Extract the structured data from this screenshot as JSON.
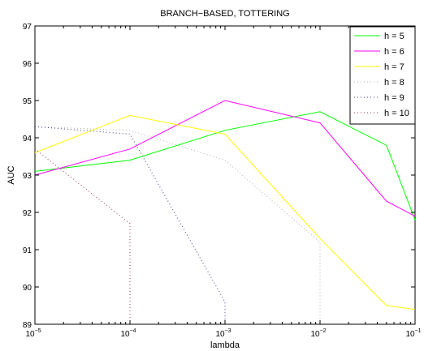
{
  "chart_data": {
    "type": "line",
    "title": "BRANCH−BASED, TOTTERING",
    "xlabel": "lambda",
    "ylabel": "AUC",
    "xscale": "log",
    "xlim": [
      1e-05,
      0.1
    ],
    "ylim": [
      89,
      97
    ],
    "grid": false,
    "legend_position": "top-right",
    "xticks": [
      {
        "base": "10",
        "exp": "−5",
        "value": 1e-05
      },
      {
        "base": "10",
        "exp": "−4",
        "value": 0.0001
      },
      {
        "base": "10",
        "exp": "−3",
        "value": 0.001
      },
      {
        "base": "10",
        "exp": "−2",
        "value": 0.01
      },
      {
        "base": "10",
        "exp": "−1",
        "value": 0.1
      }
    ],
    "yticks": [
      "89",
      "90",
      "91",
      "92",
      "93",
      "94",
      "95",
      "96",
      "97"
    ],
    "series": [
      {
        "name": "h = 5",
        "color": "#00ff00",
        "style": "solid",
        "x": [
          1e-05,
          0.0001,
          0.001,
          0.01,
          0.05,
          0.1
        ],
        "y": [
          93.1,
          93.4,
          94.2,
          94.7,
          93.8,
          91.8
        ]
      },
      {
        "name": "h = 6",
        "color": "#ff00ff",
        "style": "solid",
        "x": [
          1e-05,
          0.0001,
          0.001,
          0.01,
          0.05,
          0.1
        ],
        "y": [
          93.0,
          93.7,
          95.0,
          94.4,
          92.3,
          91.9
        ]
      },
      {
        "name": "h = 7",
        "color": "#ffff00",
        "style": "solid",
        "x": [
          1e-05,
          0.0001,
          0.001,
          0.01,
          0.05,
          0.1
        ],
        "y": [
          93.6,
          94.6,
          94.1,
          91.3,
          89.5,
          89.4
        ]
      },
      {
        "name": "h = 8",
        "color": "#b0b0b0",
        "style": "dotted",
        "x": [
          1e-05,
          0.0001,
          0.001,
          0.01,
          0.01
        ],
        "y": [
          94.3,
          94.2,
          93.4,
          91.2,
          89.0
        ]
      },
      {
        "name": "h = 9",
        "color": "#404080",
        "style": "dotted",
        "x": [
          1e-05,
          0.0001,
          0.001,
          0.001
        ],
        "y": [
          94.3,
          94.1,
          89.6,
          89.0
        ]
      },
      {
        "name": "h = 10",
        "color": "#a0305a",
        "style": "dotted",
        "x": [
          1e-05,
          0.0001,
          0.0001
        ],
        "y": [
          93.7,
          91.7,
          89.0
        ]
      }
    ]
  }
}
